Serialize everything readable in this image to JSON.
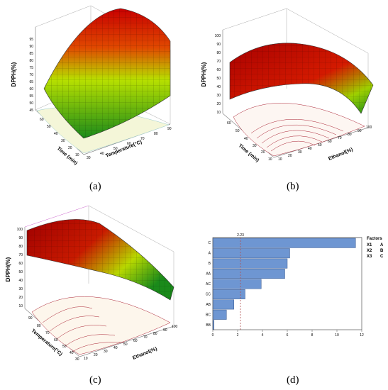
{
  "captions": [
    "(a)",
    "(b)",
    "(c)",
    "(d)"
  ],
  "chart_data": [
    {
      "type": "surface",
      "panel": "a",
      "zlabel": "DPPH(%)",
      "xlabel": "Temperature(°C)",
      "ylabel": "Time (min)",
      "zticks": [
        "95",
        "90",
        "85",
        "80",
        "75",
        "70",
        "65",
        "60",
        "55",
        "50",
        "45"
      ],
      "xticks": [
        "30",
        "40",
        "50",
        "60",
        "70",
        "80",
        "90"
      ],
      "yticks": [
        "10",
        "20",
        "30",
        "40",
        "50",
        "60"
      ],
      "zlim": [
        45,
        95
      ],
      "colormap": [
        "#1a8a1a",
        "#c8e000",
        "#d40000"
      ]
    },
    {
      "type": "surface",
      "panel": "b",
      "zlabel": "DPPH(%)",
      "xlabel": "Ethanol(%)",
      "ylabel": "Time (min)",
      "zticks": [
        "100",
        "90",
        "80",
        "70",
        "60",
        "50",
        "40",
        "30",
        "20",
        "10"
      ],
      "xticks": [
        "10",
        "20",
        "30",
        "40",
        "50",
        "60",
        "70",
        "80",
        "90",
        "100"
      ],
      "yticks": [
        "10",
        "20",
        "30",
        "40",
        "50",
        "60"
      ],
      "zlim": [
        10,
        100
      ],
      "colormap": [
        "#1a8a1a",
        "#c8e000",
        "#d40000"
      ]
    },
    {
      "type": "surface",
      "panel": "c",
      "zlabel": "DPPH(%)",
      "xlabel": "Ethanol(%)",
      "ylabel": "Temperature(°C)",
      "zticks": [
        "100",
        "90",
        "80",
        "70",
        "60",
        "50",
        "40",
        "30",
        "20",
        "10"
      ],
      "xticks": [
        "10",
        "20",
        "30",
        "40",
        "50",
        "60",
        "70",
        "80",
        "90",
        "100"
      ],
      "yticks": [
        "30",
        "40",
        "50",
        "60",
        "70",
        "80",
        "90"
      ],
      "zlim": [
        10,
        100
      ],
      "colormap": [
        "#1a8a1a",
        "#c8e000",
        "#d40000"
      ]
    },
    {
      "type": "bar",
      "panel": "d",
      "orientation": "horizontal",
      "categories": [
        "C",
        "A",
        "B",
        "AA",
        "AC",
        "CC",
        "AB",
        "BC",
        "BB"
      ],
      "values": [
        11.5,
        6.2,
        6.0,
        5.8,
        3.9,
        2.6,
        1.7,
        1.1,
        0.1
      ],
      "xlim": [
        0,
        12
      ],
      "xticks": [
        "0",
        "2",
        "4",
        "6",
        "8",
        "10",
        "12"
      ],
      "reference_line": 2.23,
      "reference_label": "2.23",
      "bar_color": "#6e96d2",
      "legend": {
        "title": "Factors",
        "rows": [
          {
            "code": "X1",
            "name": "A"
          },
          {
            "code": "X2",
            "name": "B"
          },
          {
            "code": "X3",
            "name": "C"
          }
        ]
      }
    }
  ]
}
